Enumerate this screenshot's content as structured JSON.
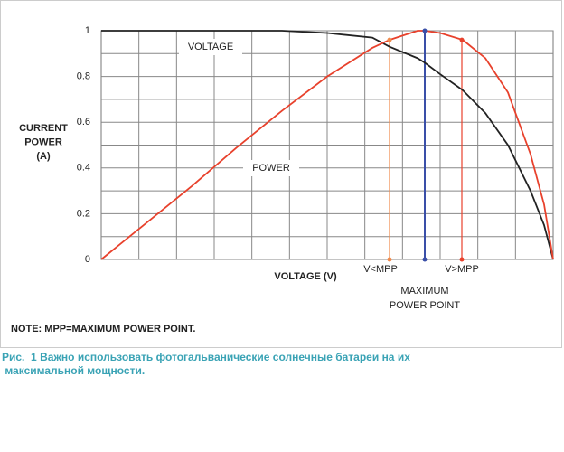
{
  "chart_data": {
    "type": "line",
    "y_label": [
      "CURRENT",
      "POWER",
      "(A)"
    ],
    "x_label": "VOLTAGE (V)",
    "note": "NOTE: MPP=MAXIMUM POWER POINT.",
    "caption": [
      "Рис.  1 Важно использовать фотогальванические солнечные батареи на их",
      " максимальной мощности."
    ],
    "x": [
      0,
      0.1,
      0.2,
      0.3,
      0.4,
      0.5,
      0.6,
      0.638,
      0.7,
      0.716,
      0.75,
      0.8,
      0.85,
      0.9,
      0.95,
      0.98,
      1
    ],
    "xlim": [
      0,
      1
    ],
    "ylim": [
      0,
      1
    ],
    "yticks": [
      0,
      0.2,
      0.4,
      0.6,
      0.8,
      1
    ],
    "grid": true,
    "series": [
      {
        "name": "VOLTAGE",
        "color": "#222222",
        "values": [
          1,
          1,
          1,
          1,
          1,
          0.99,
          0.97,
          0.93,
          0.88,
          0.86,
          0.81,
          0.74,
          0.64,
          0.5,
          0.3,
          0.15,
          0
        ]
      },
      {
        "name": "POWER",
        "color": "#e8412c",
        "values": [
          0,
          0.16,
          0.32,
          0.49,
          0.65,
          0.8,
          0.925,
          0.96,
          1,
          1,
          0.99,
          0.96,
          0.88,
          0.73,
          0.46,
          0.24,
          0
        ]
      }
    ],
    "markers": [
      {
        "label": [
          "V<MPP"
        ],
        "x": 0.638,
        "value": 0.96,
        "color": "#f08a4b"
      },
      {
        "label": [
          "MAXIMUM",
          "POWER POINT"
        ],
        "x": 0.716,
        "value": 1,
        "color": "#3a4fa8"
      },
      {
        "label": [
          "V>MPP"
        ],
        "x": 0.798,
        "value": 0.96,
        "color": "#e8412c"
      }
    ]
  }
}
